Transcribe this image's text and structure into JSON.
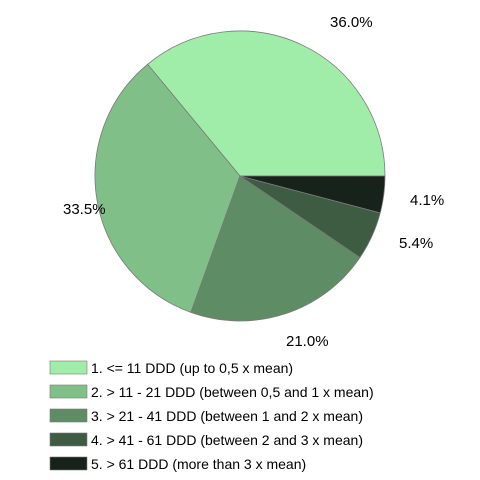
{
  "chart_data": {
    "type": "pie",
    "title": "",
    "start_angle_deg": 0,
    "direction": "counterclockwise",
    "legend_position": "bottom",
    "slices": [
      {
        "name": "1. <= 11 DDD (up to 0,5 x mean)",
        "value": 36.0,
        "label": "36.0%",
        "color": "#a0edaa"
      },
      {
        "name": "2. > 11 - 21 DDD (between 0,5 and 1 x mean)",
        "value": 33.5,
        "label": "33.5%",
        "color": "#80c088"
      },
      {
        "name": "3. > 21 - 41 DDD (between 1 and 2 x mean)",
        "value": 21.0,
        "label": "21.0%",
        "color": "#5e8c64"
      },
      {
        "name": "4. > 41 - 61 DDD (between 2 and 3 x mean)",
        "value": 5.4,
        "label": "5.4%",
        "color": "#3d5c42"
      },
      {
        "name": "5. > 61 DDD (more than 3 x mean)",
        "value": 4.1,
        "label": "4.1%",
        "color": "#16221a"
      }
    ]
  }
}
